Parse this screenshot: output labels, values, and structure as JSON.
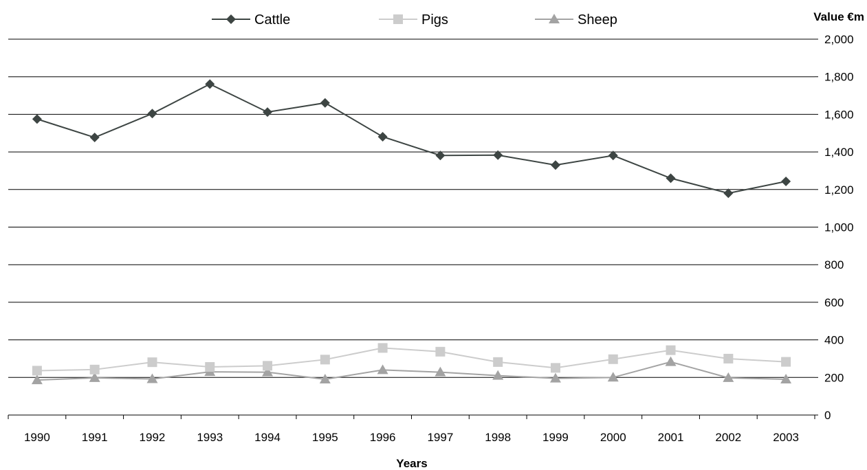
{
  "chart_data": {
    "type": "line",
    "title": "",
    "xlabel": "Years",
    "ylabel": "Value €m",
    "ylim": [
      0,
      2000
    ],
    "yticks": [
      0,
      200,
      400,
      600,
      800,
      1000,
      1200,
      1400,
      1600,
      1800,
      2000
    ],
    "ytick_labels": [
      "0",
      "200",
      "400",
      "600",
      "800",
      "1,000",
      "1,200",
      "1,400",
      "1,600",
      "1,800",
      "2,000"
    ],
    "y_axis_side": "right",
    "grid": "horizontal",
    "legend_position": "top",
    "categories": [
      "1990",
      "1991",
      "1992",
      "1993",
      "1994",
      "1995",
      "1996",
      "1997",
      "1998",
      "1999",
      "2000",
      "2001",
      "2002",
      "2003"
    ],
    "series": [
      {
        "name": "Cattle",
        "marker": "diamond",
        "color": "#3d4543",
        "values": [
          1575,
          1477,
          1604,
          1761,
          1612,
          1661,
          1481,
          1381,
          1383,
          1330,
          1381,
          1260,
          1180,
          1243
        ]
      },
      {
        "name": "Pigs",
        "marker": "square",
        "color": "#cccccc",
        "values": [
          236,
          242,
          281,
          256,
          262,
          295,
          357,
          337,
          282,
          251,
          297,
          345,
          300,
          283
        ]
      },
      {
        "name": "Sheep",
        "marker": "triangle",
        "color": "#a3a3a3",
        "values": [
          186,
          198,
          192,
          230,
          228,
          190,
          240,
          228,
          210,
          195,
          200,
          283,
          198,
          190
        ]
      }
    ]
  }
}
